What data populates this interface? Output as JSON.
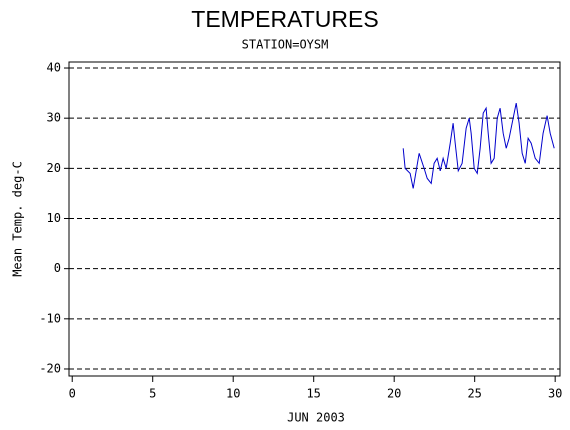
{
  "chart_data": {
    "type": "line",
    "title": "TEMPERATURES",
    "subtitle": "STATION=OYSM",
    "x_label": "JUN 2003",
    "y_label": "Mean Temp. deg-C",
    "x": [
      20.56,
      20.68,
      20.99,
      21.18,
      21.55,
      21.86,
      22.05,
      22.3,
      22.48,
      22.67,
      22.86,
      23.04,
      23.23,
      23.48,
      23.66,
      23.79,
      23.98,
      24.22,
      24.47,
      24.66,
      24.78,
      24.97,
      25.16,
      25.34,
      25.53,
      25.71,
      25.84,
      26.02,
      26.21,
      26.4,
      26.58,
      26.77,
      26.96,
      27.14,
      27.39,
      27.58,
      27.76,
      27.95,
      28.14,
      28.32,
      28.51,
      28.76,
      29.01,
      29.25,
      29.5,
      29.69,
      29.94
    ],
    "series": [
      {
        "color": "#0000cc",
        "values": [
          24,
          20,
          19,
          16,
          23,
          20,
          18,
          17,
          21,
          22,
          19.5,
          22,
          20,
          25,
          29,
          25,
          19.5,
          21,
          28,
          30,
          27,
          20,
          19,
          24,
          31,
          32,
          27,
          21,
          22,
          30,
          32,
          27,
          24,
          26,
          30,
          33,
          29,
          23,
          21,
          26,
          25,
          22,
          21,
          27,
          30.5,
          27,
          24
        ]
      }
    ],
    "xlim": [
      -0.2,
      30.3
    ],
    "xticks": [
      0,
      5,
      10,
      15,
      20,
      25,
      30
    ],
    "ylim": [
      -21.4,
      41.2
    ],
    "yticks": [
      -20,
      -10,
      0,
      10,
      20,
      30,
      40
    ],
    "grid": true
  }
}
